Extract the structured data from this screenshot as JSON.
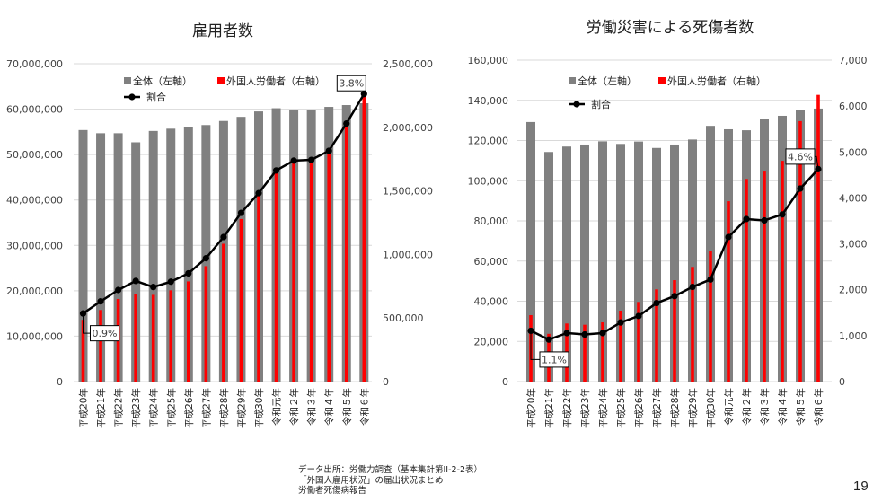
{
  "colors": {
    "total": "#808080",
    "foreign": "#ff0000",
    "ratio": "#000000",
    "grid": "#d9d9d9"
  },
  "chart_data": [
    {
      "type": "bar",
      "title": "雇用者数",
      "categories": [
        "平成20年",
        "平成21年",
        "平成22年",
        "平成23年",
        "平成24年",
        "平成25年",
        "平成26年",
        "平成27年",
        "平成28年",
        "平成29年",
        "平成30年",
        "令和元年",
        "令和２年",
        "令和３年",
        "令和４年",
        "令和５年",
        "令和６年"
      ],
      "legend": [
        "全体（左軸）",
        "外国人労働者（右軸）",
        "割合"
      ],
      "legend_position": "top-left",
      "grid": true,
      "left_axis": {
        "ylim": [
          0,
          70000000
        ],
        "ticks": [
          "0",
          "10,000,000",
          "20,000,000",
          "30,000,000",
          "40,000,000",
          "50,000,000",
          "60,000,000",
          "70,000,000"
        ]
      },
      "right_axis": {
        "ylim": [
          0,
          2500000
        ],
        "ticks": [
          "0",
          "500,000",
          "1,000,000",
          "1,500,000",
          "2,000,000",
          "2,500,000"
        ]
      },
      "ratio_range": [
        0,
        4.2
      ],
      "series": [
        {
          "name": "全体（左軸）",
          "axis": "left",
          "kind": "bar",
          "values": [
            55400000,
            54700000,
            54700000,
            52700000,
            55200000,
            55700000,
            56000000,
            56500000,
            57400000,
            58300000,
            59500000,
            60200000,
            59900000,
            59900000,
            60500000,
            60900000,
            61300000
          ]
        },
        {
          "name": "外国人労働者（右軸）",
          "axis": "right",
          "kind": "bar",
          "values": [
            486000,
            563000,
            650000,
            686000,
            682000,
            718000,
            788000,
            908000,
            1084000,
            1279000,
            1460000,
            1659000,
            1724000,
            1727000,
            1823000,
            2049000,
            2303000
          ]
        },
        {
          "name": "割合",
          "axis": "ratio",
          "kind": "line",
          "values": [
            0.9,
            1.06,
            1.21,
            1.33,
            1.25,
            1.32,
            1.43,
            1.63,
            1.91,
            2.23,
            2.49,
            2.79,
            2.92,
            2.93,
            3.05,
            3.41,
            3.8
          ]
        }
      ],
      "annotations": [
        {
          "index": 0,
          "text": "0.9%"
        },
        {
          "index": 16,
          "text": "3.8%"
        }
      ]
    },
    {
      "type": "bar",
      "title": "労働災害による死傷者数",
      "categories": [
        "平成20年",
        "平成21年",
        "平成22年",
        "平成23年",
        "平成24年",
        "平成25年",
        "平成26年",
        "平成27年",
        "平成28年",
        "平成29年",
        "平成30年",
        "令和元年",
        "令和２年",
        "令和３年",
        "令和４年",
        "令和５年",
        "令和６年"
      ],
      "legend": [
        "全体（左軸）",
        "外国人労働者（右軸）",
        "割合"
      ],
      "legend_position": "top-left",
      "grid": true,
      "left_axis": {
        "ylim": [
          0,
          160000
        ],
        "ticks": [
          "0",
          "20,000",
          "40,000",
          "60,000",
          "80,000",
          "100,000",
          "120,000",
          "140,000",
          "160,000"
        ]
      },
      "right_axis": {
        "ylim": [
          0,
          7000
        ],
        "ticks": [
          "0",
          "1,000",
          "2,000",
          "3,000",
          "4,000",
          "5,000",
          "6,000",
          "7,000"
        ]
      },
      "ratio_range": [
        0,
        6.96
      ],
      "series": [
        {
          "name": "全体（左軸）",
          "axis": "left",
          "kind": "bar",
          "values": [
            129200,
            114300,
            117000,
            118000,
            119600,
            118300,
            119500,
            116300,
            118000,
            120500,
            127300,
            125600,
            125100,
            130600,
            132300,
            135400,
            135900
          ]
        },
        {
          "name": "外国人労働者（右軸）",
          "axis": "right",
          "kind": "bar",
          "values": [
            1447,
            1040,
            1265,
            1238,
            1290,
            1545,
            1734,
            2008,
            2209,
            2497,
            2849,
            3928,
            4413,
            4574,
            4808,
            5672,
            6244
          ]
        },
        {
          "name": "割合",
          "axis": "ratio",
          "kind": "line",
          "values": [
            1.1,
            0.91,
            1.05,
            1.02,
            1.05,
            1.28,
            1.42,
            1.7,
            1.85,
            2.05,
            2.21,
            3.13,
            3.52,
            3.49,
            3.62,
            4.18,
            4.6
          ]
        }
      ],
      "annotations": [
        {
          "index": 0,
          "text": "1.1%"
        },
        {
          "index": 16,
          "text": "4.6%"
        }
      ]
    }
  ],
  "footer": {
    "source_lines": [
      "データ出所：労働力調査（基本集計第II-2-2表）",
      "「外国人雇用状況」の届出状況まとめ",
      "労働者死傷病報告"
    ],
    "page_number": "19"
  }
}
